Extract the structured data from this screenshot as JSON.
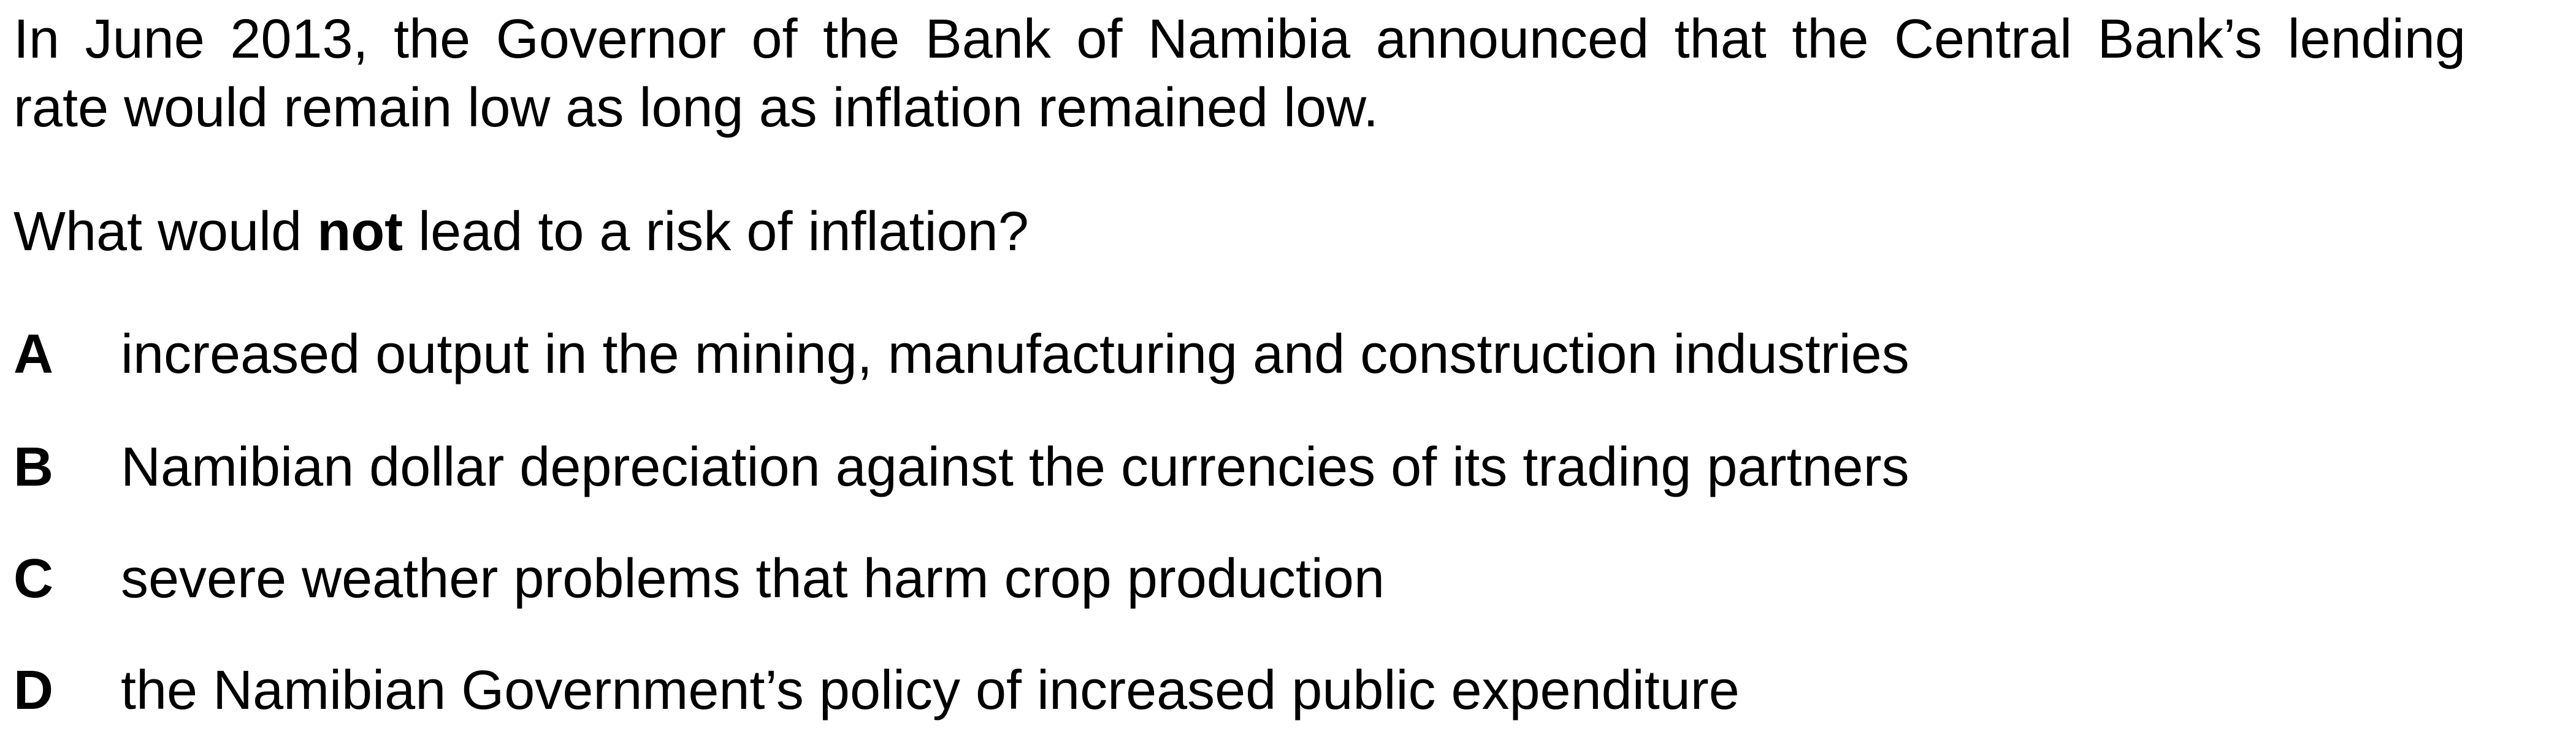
{
  "stem": {
    "line1": "In June 2013, the Governor of the Bank of Namibia announced that the Central Bank’s lending",
    "line2": "rate would remain low as long as inflation remained low."
  },
  "question": {
    "before": "What would ",
    "emphasis": "not",
    "after": " lead to a risk of inflation?"
  },
  "options": [
    {
      "letter": "A",
      "text": "increased output in the mining, manufacturing and construction industries"
    },
    {
      "letter": "B",
      "text": "Namibian dollar depreciation against the currencies of its trading partners"
    },
    {
      "letter": "C",
      "text": "severe weather problems that harm crop production"
    },
    {
      "letter": "D",
      "text": "the Namibian Government’s policy of increased public expenditure"
    }
  ]
}
